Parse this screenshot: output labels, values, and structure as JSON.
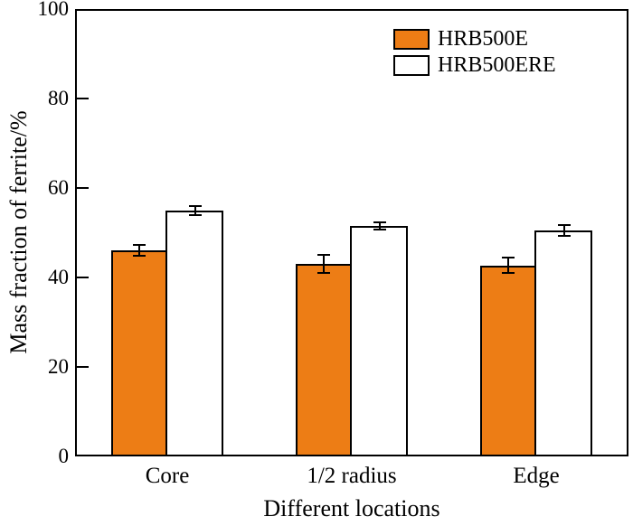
{
  "figure": {
    "background": "#FFFFFF",
    "text_color": "#000000",
    "axis_color": "#000000"
  },
  "chart_data": {
    "type": "bar",
    "title": "",
    "xlabel": "Different locations",
    "ylabel": "Mass fraction of ferrite/%",
    "categories": [
      "Core",
      "1/2 radius",
      "Edge"
    ],
    "series": [
      {
        "name": "HRB500E",
        "color": "#ED7D15",
        "border_color": "#000000",
        "values": [
          46,
          43,
          42.7
        ],
        "errors": [
          1.2,
          2.0,
          1.7
        ]
      },
      {
        "name": "HRB500ERE",
        "color": "#FFFFFF",
        "border_color": "#000000",
        "values": [
          55,
          51.5,
          50.5
        ],
        "errors": [
          1.0,
          0.8,
          1.2
        ]
      }
    ],
    "ylim": [
      0,
      100
    ],
    "yticks": [
      0,
      20,
      40,
      60,
      80,
      100
    ],
    "grid": false,
    "legend_position": "top-right-inside",
    "error_bar_color": "#000000"
  }
}
